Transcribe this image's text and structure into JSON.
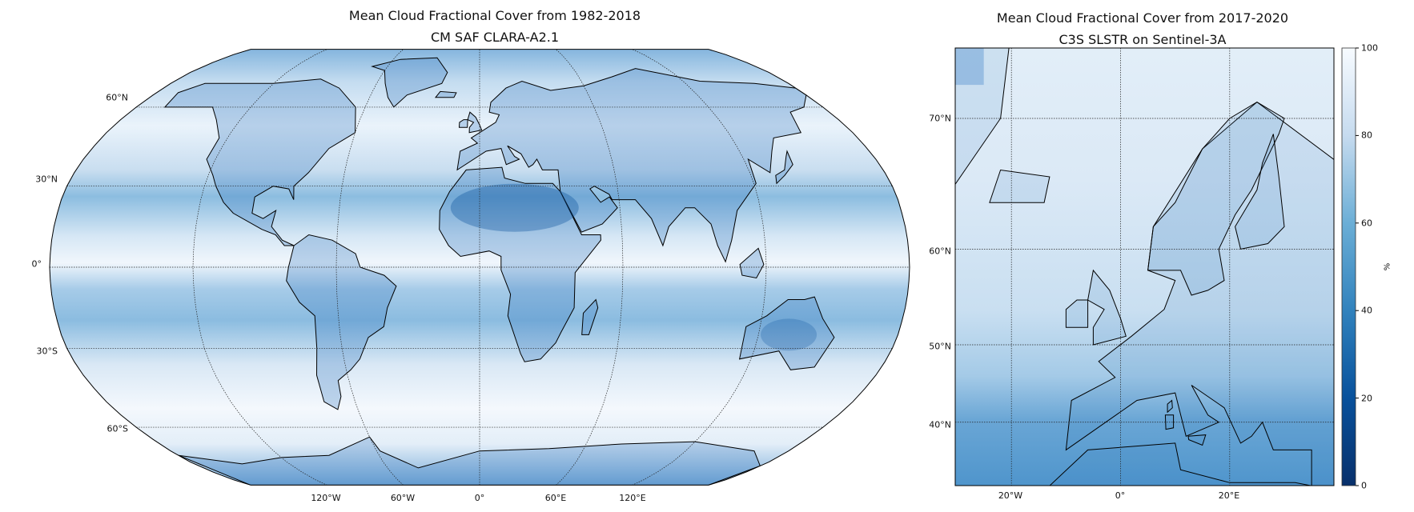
{
  "left_map": {
    "title": "Mean Cloud Fractional Cover from 1982-2018",
    "subtitle": "CM SAF CLARA-A2.1",
    "projection": "Robinson",
    "lat_labels": [
      "60°N",
      "30°N",
      "0°",
      "30°S",
      "60°S"
    ],
    "lon_labels": [
      "120°W",
      "60°W",
      "0°",
      "60°E",
      "120°E"
    ]
  },
  "right_map": {
    "title": "Mean Cloud Fractional Cover from 2017-2020",
    "subtitle": "C3S SLSTR on Sentinel-3A",
    "projection": "Mercator",
    "lat_labels": [
      "70°N",
      "60°N",
      "50°N",
      "40°N"
    ],
    "lon_labels": [
      "20°W",
      "0°",
      "20°E"
    ]
  },
  "colorbar": {
    "label": "%",
    "ticks": [
      "100",
      "80",
      "60",
      "40",
      "20",
      "0"
    ],
    "range": [
      0,
      100
    ],
    "colormap": "Blues_r",
    "color_low": "#08306b",
    "color_high": "#f7fbff"
  }
}
